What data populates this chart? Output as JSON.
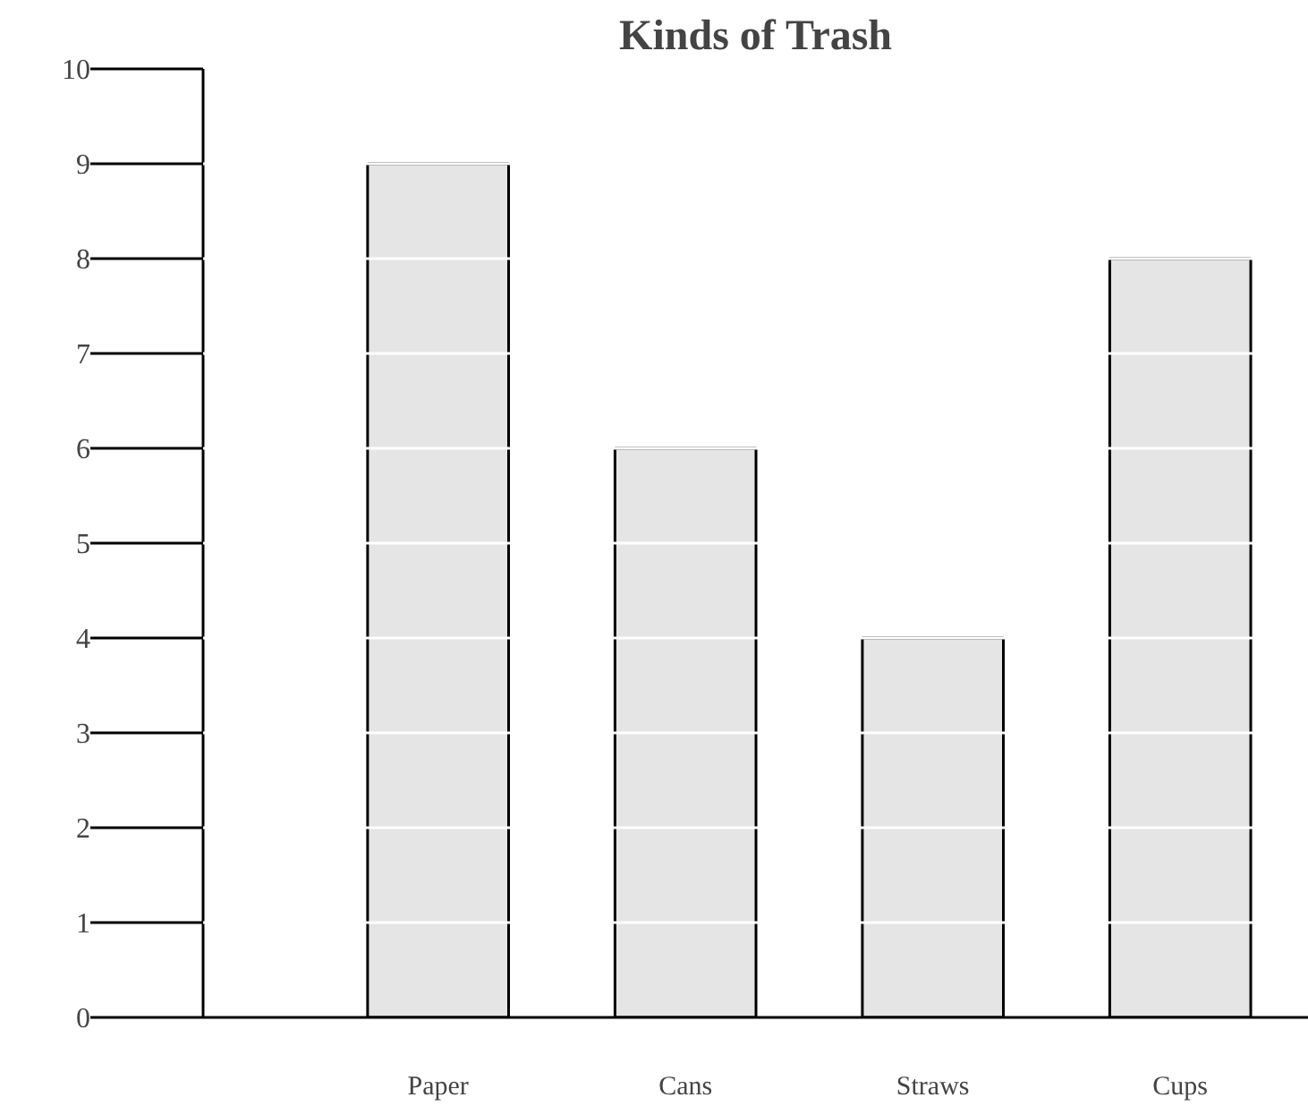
{
  "chart_data": {
    "type": "bar",
    "title": "Kinds of Trash",
    "categories": [
      "Paper",
      "Cans",
      "Straws",
      "Cups"
    ],
    "values": [
      9,
      6,
      4,
      8
    ],
    "color": "#e5e5e5",
    "ylim": [
      0,
      10
    ],
    "yticks": [
      0,
      1,
      2,
      3,
      4,
      5,
      6,
      7,
      8,
      9,
      10
    ],
    "grid": "y"
  }
}
